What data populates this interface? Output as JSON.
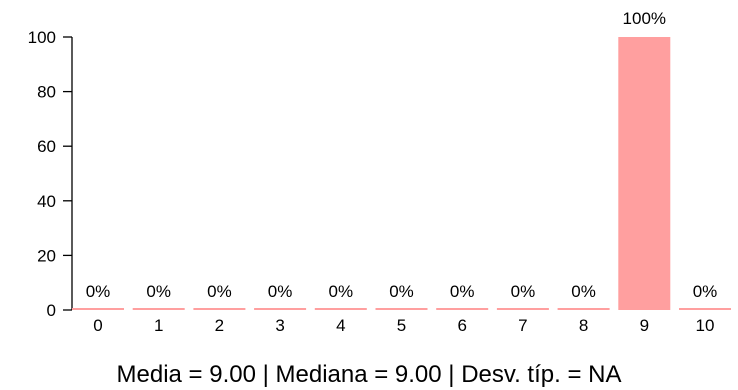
{
  "chart_data": {
    "type": "bar",
    "categories": [
      "0",
      "1",
      "2",
      "3",
      "4",
      "5",
      "6",
      "7",
      "8",
      "9",
      "10"
    ],
    "values": [
      0,
      0,
      0,
      0,
      0,
      0,
      0,
      0,
      0,
      100,
      0
    ],
    "data_labels": [
      "0%",
      "0%",
      "0%",
      "0%",
      "0%",
      "0%",
      "0%",
      "0%",
      "0%",
      "100%",
      "0%"
    ],
    "ylim": [
      0,
      100
    ],
    "yticks": [
      "0",
      "20",
      "40",
      "60",
      "80",
      "100"
    ],
    "ytick_values": [
      0,
      20,
      40,
      60,
      80,
      100
    ],
    "bar_color": "#ff9f9f",
    "grid": false,
    "legend": "none"
  },
  "summary": {
    "text": "Media =  9.00  | Mediana =  9.00  | Desv. típ. =  NA"
  }
}
